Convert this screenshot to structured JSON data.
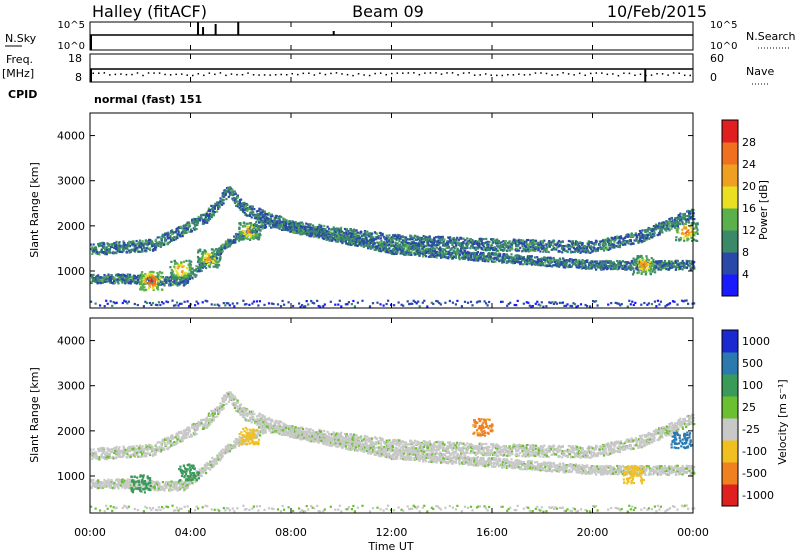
{
  "header": {
    "station": "Halley (fitACF)",
    "beam": "Beam 09",
    "date": "10/Feb/2015"
  },
  "top_panels": {
    "nsky_label": "N.Sky",
    "nsearch_label": "N.Search",
    "nsky_ticks": [
      "10^5",
      "10^0"
    ],
    "nsearch_ticks": [
      "10^5",
      "10^0"
    ],
    "freq_label": "Freq.",
    "freq_unit": "[MHz]",
    "freq_ticks": [
      "18",
      "8"
    ],
    "nave_label": "Nave",
    "nave_ticks": [
      "60",
      "0"
    ],
    "cpid_label": "CPID",
    "cpid_text": "normal (fast) 151"
  },
  "axes": {
    "x_ticks": [
      "00:00",
      "04:00",
      "08:00",
      "12:00",
      "16:00",
      "20:00",
      "00:00"
    ],
    "x_label": "Time UT",
    "y_label": "Slant Range [km]",
    "y_ticks": [
      "1000",
      "2000",
      "3000",
      "4000"
    ]
  },
  "power_scale": {
    "label": "Power [dB]",
    "ticks": [
      "4",
      "8",
      "12",
      "16",
      "20",
      "24",
      "28"
    ],
    "colors": [
      "#1a1aff",
      "#2a48a8",
      "#3a8a6a",
      "#5ab04a",
      "#e8e020",
      "#f0a020",
      "#f07020",
      "#e02020"
    ]
  },
  "velocity_scale": {
    "label": "Velocity [m s⁻¹]",
    "ticks": [
      "1000",
      "500",
      "100",
      "25",
      "-25",
      "-100",
      "-500",
      "-1000"
    ],
    "colors": [
      "#1a2ad0",
      "#2a7ab0",
      "#3a9a5a",
      "#6ac030",
      "#c8c8c8",
      "#f0c020",
      "#f08020",
      "#e02020"
    ]
  },
  "chart_data": [
    {
      "type": "heatmap",
      "title": "Power",
      "xlabel": "Time UT",
      "ylabel": "Slant Range [km]",
      "x_range_hours": [
        0,
        24
      ],
      "ylim": [
        180,
        4500
      ],
      "colorbar": {
        "label": "Power [dB]",
        "range": [
          0,
          30
        ]
      },
      "bands": [
        {
          "t": [
            0.0,
            2.5,
            4.6,
            5.5,
            6.1,
            8.0,
            12.0,
            16.0,
            20.0,
            22.0,
            24.0
          ],
          "r": [
            1500,
            1600,
            2200,
            2800,
            2400,
            2000,
            1700,
            1600,
            1550,
            1800,
            2300
          ]
        },
        {
          "t": [
            0.0,
            1.5,
            2.7,
            3.7,
            4.6,
            5.6,
            7.0,
            12.0,
            20.0,
            22.0,
            24.0
          ],
          "r": [
            850,
            850,
            800,
            800,
            1200,
            1700,
            2100,
            1500,
            1150,
            1150,
            1150
          ]
        }
      ],
      "blobs": [
        {
          "t": 2.4,
          "r": 800,
          "value": 28
        },
        {
          "t": 3.6,
          "r": 1050,
          "value": 22
        },
        {
          "t": 4.7,
          "r": 1300,
          "value": 20
        },
        {
          "t": 6.3,
          "r": 1900,
          "value": 20
        },
        {
          "t": 22.0,
          "r": 1150,
          "value": 22
        },
        {
          "t": 23.7,
          "r": 1900,
          "value": 24
        }
      ]
    },
    {
      "type": "heatmap",
      "title": "Velocity",
      "xlabel": "Time UT",
      "ylabel": "Slant Range [km]",
      "x_range_hours": [
        0,
        24
      ],
      "ylim": [
        180,
        4500
      ],
      "colorbar": {
        "label": "Velocity [m s⁻¹]",
        "range": [
          -1000,
          1000
        ]
      },
      "blobs": [
        {
          "t": 2.0,
          "r": 850,
          "value": 60
        },
        {
          "t": 3.9,
          "r": 1100,
          "value": 80
        },
        {
          "t": 6.3,
          "r": 1900,
          "value": -300
        },
        {
          "t": 15.6,
          "r": 2100,
          "value": -800
        },
        {
          "t": 21.6,
          "r": 1050,
          "value": -300
        },
        {
          "t": 23.5,
          "r": 1800,
          "value": 200
        }
      ]
    }
  ]
}
